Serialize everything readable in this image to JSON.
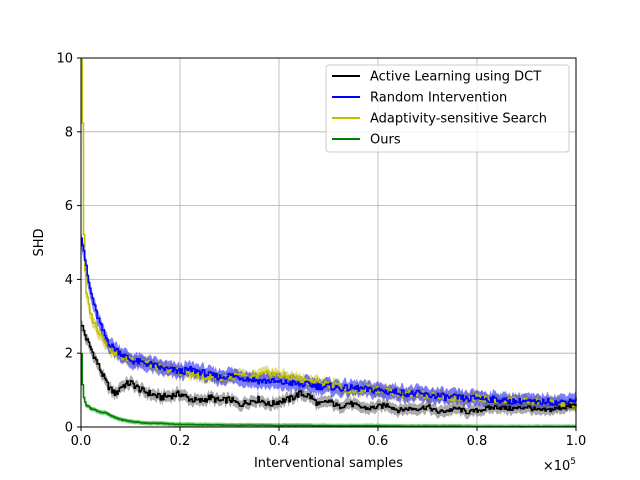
{
  "chart_data": {
    "type": "line",
    "title": "",
    "xlabel": "Interventional samples",
    "ylabel": "SHD",
    "x_multiplier_label": "×10",
    "x_multiplier_exp": "5",
    "xlim": [
      0,
      1.0
    ],
    "ylim": [
      0,
      10
    ],
    "xticks": [
      "0.0",
      "0.2",
      "0.4",
      "0.6",
      "0.8",
      "1.0"
    ],
    "yticks": [
      "0",
      "2",
      "4",
      "6",
      "8",
      "10"
    ],
    "grid": true,
    "legend_position": "top-right",
    "series": [
      {
        "name": "Active Learning using DCT",
        "color": "#000000",
        "band_color": "#555555",
        "x": [
          0.0,
          0.005,
          0.01,
          0.02,
          0.03,
          0.04,
          0.05,
          0.06,
          0.07,
          0.08,
          0.1,
          0.12,
          0.14,
          0.16,
          0.18,
          0.2,
          0.22,
          0.24,
          0.26,
          0.28,
          0.3,
          0.32,
          0.34,
          0.36,
          0.38,
          0.4,
          0.42,
          0.44,
          0.46,
          0.48,
          0.5,
          0.52,
          0.54,
          0.56,
          0.58,
          0.6,
          0.62,
          0.64,
          0.66,
          0.68,
          0.7,
          0.72,
          0.74,
          0.76,
          0.78,
          0.8,
          0.82,
          0.84,
          0.86,
          0.88,
          0.9,
          0.92,
          0.94,
          0.96,
          0.98,
          1.0
        ],
        "y": [
          2.8,
          2.6,
          2.4,
          2.1,
          1.8,
          1.5,
          1.2,
          1.0,
          0.9,
          1.1,
          1.2,
          1.0,
          0.9,
          0.8,
          0.85,
          0.9,
          0.75,
          0.7,
          0.8,
          0.7,
          0.75,
          0.6,
          0.7,
          0.75,
          0.6,
          0.7,
          0.75,
          0.9,
          0.85,
          0.6,
          0.7,
          0.55,
          0.65,
          0.55,
          0.5,
          0.55,
          0.6,
          0.45,
          0.5,
          0.5,
          0.55,
          0.4,
          0.45,
          0.5,
          0.4,
          0.45,
          0.5,
          0.55,
          0.5,
          0.5,
          0.55,
          0.45,
          0.45,
          0.5,
          0.55,
          0.6
        ],
        "band": 0.15
      },
      {
        "name": "Random Intervention",
        "color": "#0000ff",
        "band_color": "#0000ff",
        "x": [
          0.0,
          0.005,
          0.01,
          0.015,
          0.02,
          0.03,
          0.04,
          0.05,
          0.06,
          0.08,
          0.1,
          0.12,
          0.14,
          0.16,
          0.18,
          0.2,
          0.22,
          0.24,
          0.26,
          0.28,
          0.3,
          0.32,
          0.34,
          0.36,
          0.38,
          0.4,
          0.42,
          0.44,
          0.46,
          0.48,
          0.5,
          0.52,
          0.54,
          0.56,
          0.58,
          0.6,
          0.62,
          0.64,
          0.66,
          0.68,
          0.7,
          0.72,
          0.74,
          0.76,
          0.78,
          0.8,
          0.82,
          0.84,
          0.86,
          0.88,
          0.9,
          0.92,
          0.94,
          0.96,
          0.98,
          1.0
        ],
        "y": [
          5.2,
          4.8,
          4.3,
          3.9,
          3.6,
          3.1,
          2.7,
          2.4,
          2.2,
          2.0,
          1.8,
          1.75,
          1.7,
          1.6,
          1.55,
          1.5,
          1.55,
          1.5,
          1.4,
          1.35,
          1.4,
          1.35,
          1.3,
          1.25,
          1.25,
          1.2,
          1.2,
          1.15,
          1.15,
          1.1,
          1.1,
          1.05,
          1.05,
          1.05,
          1.0,
          1.0,
          0.95,
          0.95,
          0.9,
          0.9,
          0.85,
          0.85,
          0.8,
          0.8,
          0.75,
          0.8,
          0.75,
          0.75,
          0.7,
          0.7,
          0.7,
          0.65,
          0.7,
          0.65,
          0.7,
          0.75
        ],
        "band": 0.2
      },
      {
        "name": "Adaptivity-sensitive Search",
        "color": "#bfbf00",
        "band_color": "#bfbf00",
        "x": [
          0.0,
          0.002,
          0.004,
          0.006,
          0.01,
          0.02,
          0.03,
          0.04,
          0.05,
          0.06,
          0.08,
          0.1,
          0.12,
          0.14,
          0.16,
          0.18,
          0.2,
          0.22,
          0.24,
          0.26,
          0.28,
          0.3,
          0.32,
          0.34,
          0.36,
          0.38,
          0.4,
          0.42,
          0.44,
          0.46,
          0.48,
          0.5,
          0.52,
          0.54,
          0.56,
          0.58,
          0.6,
          0.62,
          0.64,
          0.66,
          0.68,
          0.7,
          0.72,
          0.74,
          0.76,
          0.78,
          0.8,
          0.82,
          0.84,
          0.86,
          0.88,
          0.9,
          0.92,
          0.94,
          0.96,
          0.98,
          1.0
        ],
        "y": [
          10.0,
          9.0,
          6.0,
          4.5,
          3.6,
          3.0,
          2.7,
          2.5,
          2.3,
          2.1,
          1.9,
          1.85,
          1.8,
          1.7,
          1.6,
          1.55,
          1.5,
          1.45,
          1.4,
          1.35,
          1.35,
          1.35,
          1.4,
          1.3,
          1.4,
          1.45,
          1.4,
          1.35,
          1.3,
          1.25,
          1.2,
          1.15,
          1.1,
          1.0,
          1.0,
          1.05,
          1.0,
          1.0,
          0.9,
          0.9,
          0.9,
          0.85,
          0.85,
          0.8,
          0.8,
          0.75,
          0.8,
          0.75,
          0.7,
          0.7,
          0.75,
          0.7,
          0.7,
          0.65,
          0.65,
          0.6,
          0.55
        ],
        "band": 0.15
      },
      {
        "name": "Ours",
        "color": "#008000",
        "band_color": "#00a000",
        "x": [
          0.0,
          0.002,
          0.005,
          0.01,
          0.02,
          0.03,
          0.04,
          0.05,
          0.06,
          0.08,
          0.1,
          0.12,
          0.14,
          0.16,
          0.18,
          0.2,
          0.25,
          0.3,
          0.35,
          0.4,
          0.45,
          0.5,
          0.55,
          0.6,
          0.65,
          0.7,
          0.75,
          0.8,
          0.85,
          0.9,
          0.95,
          1.0
        ],
        "y": [
          2.0,
          1.2,
          0.8,
          0.6,
          0.5,
          0.45,
          0.4,
          0.38,
          0.3,
          0.2,
          0.15,
          0.12,
          0.1,
          0.1,
          0.08,
          0.07,
          0.06,
          0.05,
          0.05,
          0.04,
          0.04,
          0.03,
          0.03,
          0.03,
          0.02,
          0.02,
          0.02,
          0.01,
          0.01,
          0.01,
          0.01,
          0.01
        ],
        "band": 0.06
      }
    ]
  }
}
